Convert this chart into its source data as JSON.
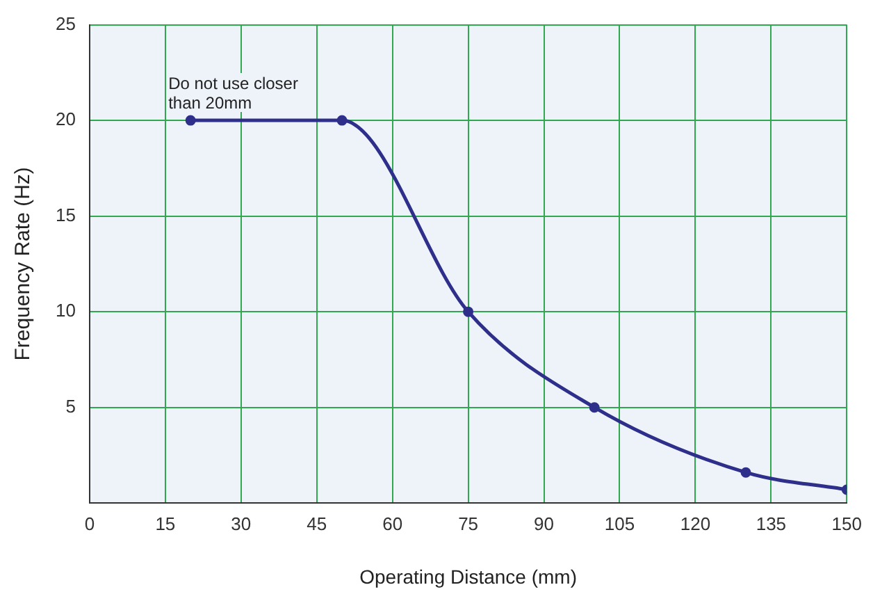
{
  "chart_data": {
    "type": "line",
    "xlabel": "Operating Distance (mm)",
    "ylabel": "Frequency Rate (Hz)",
    "x": [
      20,
      50,
      75,
      100,
      130,
      150
    ],
    "series": [
      {
        "color": "#2e2f8a",
        "values": [
          20,
          20,
          10,
          5,
          1.6,
          0.7
        ]
      }
    ],
    "xlim": [
      0,
      150
    ],
    "xticks": [
      0,
      15,
      30,
      45,
      60,
      75,
      90,
      105,
      120,
      135,
      150
    ],
    "ylim": [
      0,
      25
    ],
    "yticks": [
      {
        "value": 0,
        "label": null
      },
      5,
      10,
      15,
      20,
      25
    ],
    "grid": true,
    "legend": false,
    "marker": "circle",
    "line_style": "solid",
    "annotations": [
      {
        "text": "Do not use closer than 20mm",
        "x": 20,
        "y": 20
      }
    ]
  }
}
